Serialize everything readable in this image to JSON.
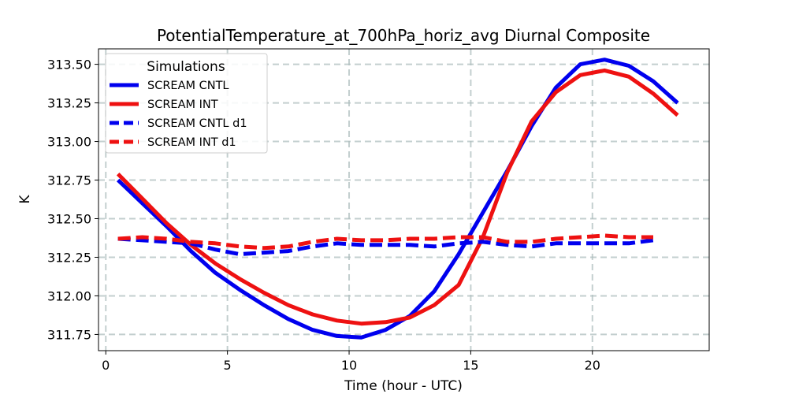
{
  "chart_data": {
    "type": "line",
    "title": "PotentialTemperature_at_700hPa_horiz_avg Diurnal Composite",
    "xlabel": "Time (hour - UTC)",
    "ylabel": "K",
    "xlim": [
      -0.3,
      24.8
    ],
    "ylim": [
      311.645,
      313.6
    ],
    "x_ticks": [
      0,
      5,
      10,
      15,
      20
    ],
    "x_tick_labels": [
      "0",
      "5",
      "10",
      "15",
      "20"
    ],
    "y_ticks": [
      311.75,
      312.0,
      312.25,
      312.5,
      312.75,
      313.0,
      313.25,
      313.5
    ],
    "y_tick_labels": [
      "311.75",
      "312.00",
      "312.25",
      "312.50",
      "312.75",
      "313.00",
      "313.25",
      "313.50"
    ],
    "grid": true,
    "legend": {
      "title": "Simulations",
      "position": "top-left"
    },
    "series": [
      {
        "name": "SCREAM CNTL",
        "color": "#0000ee",
        "dashed": false,
        "x": [
          0.5,
          1.5,
          2.5,
          3.5,
          4.5,
          5.5,
          6.5,
          7.5,
          8.5,
          9.5,
          10.5,
          11.5,
          12.5,
          13.5,
          14.5,
          15.5,
          16.5,
          17.5,
          18.5,
          19.5,
          20.5,
          21.5,
          22.5,
          23.5
        ],
        "values": [
          312.75,
          312.6,
          312.45,
          312.29,
          312.15,
          312.04,
          311.94,
          311.85,
          311.78,
          311.74,
          311.73,
          311.78,
          311.87,
          312.03,
          312.27,
          312.54,
          312.81,
          313.1,
          313.35,
          313.5,
          313.53,
          313.49,
          313.39,
          313.25
        ]
      },
      {
        "name": "SCREAM INT",
        "color": "#ee1111",
        "dashed": false,
        "x": [
          0.5,
          1.5,
          2.5,
          3.5,
          4.5,
          5.5,
          6.5,
          7.5,
          8.5,
          9.5,
          10.5,
          11.5,
          12.5,
          13.5,
          14.5,
          15.5,
          16.5,
          17.5,
          18.5,
          19.5,
          20.5,
          21.5,
          22.5,
          23.5
        ],
        "values": [
          312.79,
          312.63,
          312.47,
          312.33,
          312.21,
          312.11,
          312.02,
          311.94,
          311.88,
          311.84,
          311.82,
          311.83,
          311.86,
          311.94,
          312.07,
          312.38,
          312.8,
          313.13,
          313.32,
          313.43,
          313.46,
          313.42,
          313.31,
          313.17
        ]
      },
      {
        "name": "SCREAM CNTL d1",
        "color": "#0000ee",
        "dashed": true,
        "x": [
          0.5,
          1.5,
          2.5,
          3.5,
          4.5,
          5.5,
          6.5,
          7.5,
          8.5,
          9.5,
          10.5,
          11.5,
          12.5,
          13.5,
          14.5,
          15.5,
          16.5,
          17.5,
          18.5,
          19.5,
          20.5,
          21.5,
          22.5
        ],
        "values": [
          312.37,
          312.36,
          312.35,
          312.34,
          312.3,
          312.27,
          312.28,
          312.29,
          312.32,
          312.34,
          312.33,
          312.33,
          312.33,
          312.32,
          312.34,
          312.35,
          312.33,
          312.32,
          312.34,
          312.34,
          312.34,
          312.34,
          312.36
        ]
      },
      {
        "name": "SCREAM INT d1",
        "color": "#ee1111",
        "dashed": true,
        "x": [
          0.5,
          1.5,
          2.5,
          3.5,
          4.5,
          5.5,
          6.5,
          7.5,
          8.5,
          9.5,
          10.5,
          11.5,
          12.5,
          13.5,
          14.5,
          15.5,
          16.5,
          17.5,
          18.5,
          19.5,
          20.5,
          21.5,
          22.5
        ],
        "values": [
          312.37,
          312.38,
          312.37,
          312.35,
          312.34,
          312.32,
          312.31,
          312.32,
          312.35,
          312.37,
          312.36,
          312.36,
          312.37,
          312.37,
          312.38,
          312.38,
          312.35,
          312.35,
          312.37,
          312.38,
          312.39,
          312.38,
          312.38
        ]
      }
    ]
  }
}
